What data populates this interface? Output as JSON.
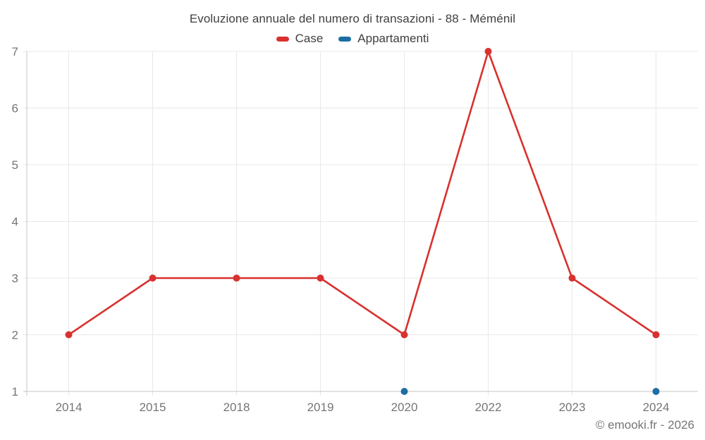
{
  "title": "Evoluzione annuale del numero di transazioni - 88 - Méménil",
  "footer": "© emooki.fr - 2026",
  "colors": {
    "case_red": "#d8312f",
    "appartamenti_blue": "#1c6ea4",
    "grid": "#e8e8e8",
    "axis": "#c6c6c6",
    "tick_text": "#757575",
    "title_text": "#3f3f3f"
  },
  "chart_data": {
    "type": "line",
    "title": "Evoluzione annuale del numero di transazioni - 88 - Méménil",
    "categories": [
      "2014",
      "2015",
      "2018",
      "2019",
      "2020",
      "2022",
      "2023",
      "2024"
    ],
    "series": [
      {
        "name": "Case",
        "color": "#d8312f",
        "values": [
          2,
          3,
          3,
          3,
          2,
          7,
          3,
          2
        ]
      },
      {
        "name": "Appartamenti",
        "color": "#1c6ea4",
        "values": [
          null,
          null,
          null,
          null,
          1,
          null,
          null,
          1
        ]
      }
    ],
    "xlabel": "",
    "ylabel": "",
    "ylim": [
      1,
      7
    ],
    "yticks": [
      1,
      2,
      3,
      4,
      5,
      6,
      7
    ],
    "grid": true,
    "legend_position": "top",
    "marker": "circle"
  }
}
